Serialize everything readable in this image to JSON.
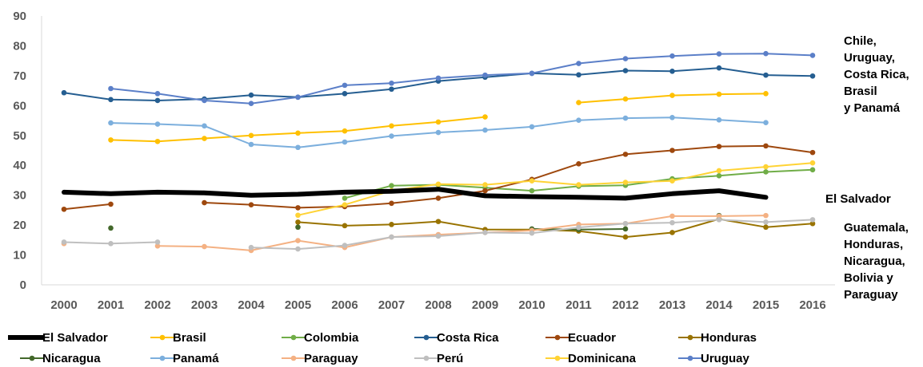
{
  "chart_data": {
    "type": "line",
    "title": "",
    "xlabel": "",
    "ylabel": "",
    "x": [
      2000,
      2001,
      2002,
      2003,
      2004,
      2005,
      2006,
      2007,
      2008,
      2009,
      2010,
      2011,
      2012,
      2013,
      2014,
      2015,
      2016
    ],
    "ylim": [
      0,
      90
    ],
    "yticks": [
      0,
      10,
      20,
      30,
      40,
      50,
      60,
      70,
      80,
      90
    ],
    "grid": false,
    "legend_position": "bottom",
    "series": [
      {
        "name": "El Salvador",
        "color": "#000000",
        "width": 6,
        "markers": false,
        "values": [
          31,
          30.5,
          31,
          30.8,
          30,
          30.3,
          31,
          31.3,
          32,
          29.8,
          29.5,
          29.3,
          29,
          30.5,
          31.5,
          29.3,
          null
        ]
      },
      {
        "name": "Brasil",
        "color": "#FFC000",
        "width": 2,
        "markers": true,
        "values": [
          null,
          48.5,
          48,
          49,
          50,
          50.8,
          51.5,
          53.2,
          54.5,
          56.2,
          null,
          61,
          62.2,
          63.4,
          63.8,
          64,
          null
        ]
      },
      {
        "name": "Colombia",
        "color": "#70AD47",
        "width": 2,
        "markers": true,
        "values": [
          null,
          null,
          null,
          null,
          null,
          null,
          29,
          33.2,
          33.5,
          32.5,
          31.5,
          33,
          33.3,
          35.5,
          36.5,
          37.8,
          38.5
        ]
      },
      {
        "name": "Costa Rica",
        "color": "#255E91",
        "width": 2,
        "markers": true,
        "values": [
          64.3,
          62,
          61.7,
          62.2,
          63.5,
          62.8,
          64,
          65.5,
          68.2,
          69.5,
          70.8,
          70.3,
          71.7,
          71.5,
          72.6,
          70.2,
          69.9
        ]
      },
      {
        "name": "Ecuador",
        "color": "#9E480E",
        "width": 2,
        "markers": true,
        "values": [
          25.3,
          27,
          null,
          27.5,
          26.8,
          25.8,
          26.2,
          27.3,
          29,
          31.5,
          35.3,
          40.5,
          43.7,
          45,
          46.3,
          46.5,
          44.3
        ]
      },
      {
        "name": "Honduras",
        "color": "#997300",
        "width": 2,
        "markers": true,
        "values": [
          null,
          null,
          null,
          null,
          null,
          21,
          19.8,
          20.2,
          21.2,
          18.5,
          18.5,
          18,
          16,
          17.5,
          22,
          19.3,
          20.5
        ]
      },
      {
        "name": "Nicaragua",
        "color": "#43682B",
        "width": 2,
        "markers": true,
        "values": [
          null,
          19,
          null,
          null,
          null,
          19.3,
          null,
          null,
          null,
          null,
          18.7,
          18.5,
          18.7,
          null,
          23.2,
          null,
          null
        ]
      },
      {
        "name": "Panamá",
        "color": "#7CAFDD",
        "width": 2,
        "markers": true,
        "values": [
          null,
          54.2,
          53.8,
          53.2,
          47,
          46,
          47.8,
          49.8,
          51,
          51.8,
          52.9,
          55.1,
          55.8,
          56,
          55.2,
          54.3,
          null
        ]
      },
      {
        "name": "Paraguay",
        "color": "#F4B183",
        "width": 2,
        "markers": true,
        "values": [
          13.8,
          null,
          13,
          12.8,
          11.5,
          14.8,
          12.5,
          16,
          16.8,
          17.5,
          18.2,
          20.2,
          20.5,
          23,
          23,
          23.2,
          null
        ]
      },
      {
        "name": "Perú",
        "color": "#BFBFBF",
        "width": 2,
        "markers": true,
        "values": [
          14.3,
          13.8,
          14.3,
          null,
          12.5,
          12,
          13.2,
          16,
          16.3,
          17.5,
          17.3,
          19.2,
          20.5,
          20.8,
          21.8,
          21,
          21.8
        ]
      },
      {
        "name": "Dominicana",
        "color": "#FFD335",
        "width": 2,
        "markers": true,
        "values": [
          null,
          null,
          null,
          null,
          null,
          23.3,
          26.8,
          31.5,
          33.7,
          33.5,
          34.8,
          33.5,
          34.3,
          34.8,
          38.2,
          39.5,
          40.8
        ]
      },
      {
        "name": "Uruguay",
        "color": "#5B7FC8",
        "width": 2,
        "markers": true,
        "values": [
          null,
          65.7,
          64,
          61.7,
          60.7,
          62.8,
          66.8,
          67.5,
          69.2,
          70.2,
          70.8,
          74.1,
          75.7,
          76.6,
          77.3,
          77.4,
          76.8
        ]
      }
    ],
    "annotations": {
      "top_group": [
        "Chile,",
        "Uruguay,",
        "Costa Rica,",
        "Brasil",
        "y Panamá"
      ],
      "el_salvador": "El Salvador",
      "bottom_group": [
        "Guatemala,",
        "Honduras,",
        "Nicaragua,",
        "Bolivia y",
        "Paraguay"
      ]
    }
  }
}
